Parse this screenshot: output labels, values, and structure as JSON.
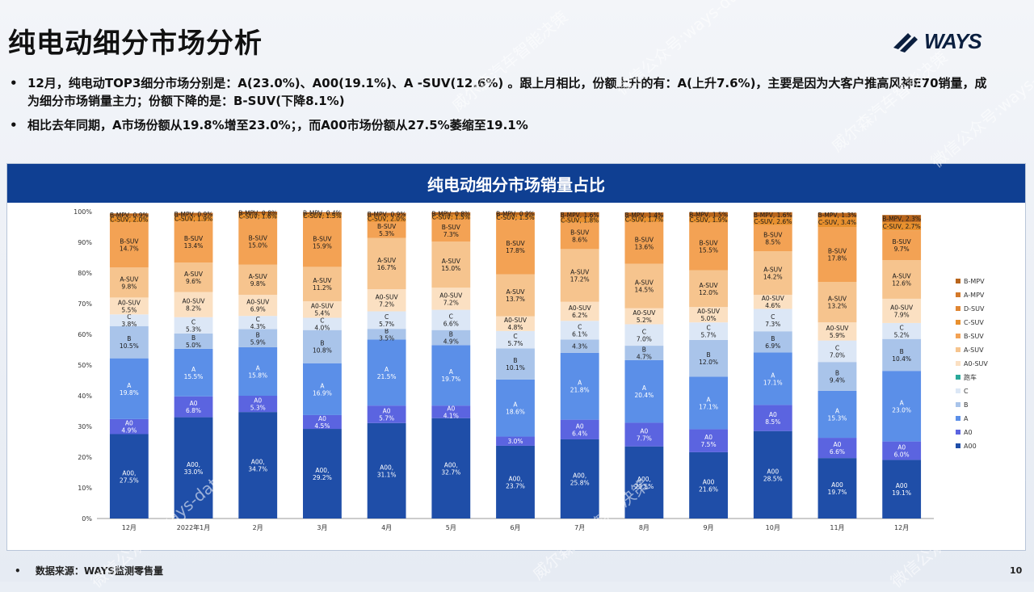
{
  "page": {
    "title": "纯电动细分市场分析",
    "logo_text": "WAYS",
    "bullets": [
      "12月，纯电动TOP3细分市场分别是：A(23.0%)、A00(19.1%)、A -SUV(12.6%) 。跟上月相比，份额上升的有：A(上升7.6%)，主要是因为大客户推高风神E70销量，成为细分市场销量主力；份额下降的是：B-SUV(下降8.1%)",
      "相比去年同期，A市场份额从19.8%增至23.0%；，而A00市场份额从27.5%萎缩至19.1%"
    ],
    "panel_title": "纯电动细分市场销量占比",
    "footer": "数据来源：WAYS监测零售量",
    "page_number": "10",
    "watermark_lines": [
      "威尔森汽车智能决策",
      "微信公众号:ways-data"
    ]
  },
  "chart_data": {
    "type": "bar",
    "stacked": true,
    "categories": [
      "12月",
      "2022年1月",
      "2月",
      "3月",
      "4月",
      "5月",
      "6月",
      "7月",
      "8月",
      "9月",
      "10月",
      "11月",
      "12月"
    ],
    "y_ticks": [
      "0%",
      "10%",
      "20%",
      "30%",
      "40%",
      "50%",
      "60%",
      "70%",
      "80%",
      "90%",
      "100%"
    ],
    "ylim": [
      0,
      100
    ],
    "legend_position": "right",
    "legend": [
      "B-MPV",
      "A-MPV",
      "D-SUV",
      "C-SUV",
      "B-SUV",
      "A-SUV",
      "A0-SUV",
      "跑车",
      "C",
      "B",
      "A",
      "A0",
      "A00"
    ],
    "series": [
      {
        "name": "A00",
        "label": "A00",
        "color": "#1f4ea8",
        "values": [
          27.5,
          33.0,
          34.7,
          29.2,
          31.1,
          32.7,
          23.7,
          25.8,
          23.5,
          21.6,
          28.5,
          19.7,
          19.1
        ],
        "labels": [
          "A00,\n27.5%",
          "A00,\n33.0%",
          "A00,\n34.7%",
          "A00,\n29.2%",
          "A00,\n31.1%",
          "A00,\n32.7%",
          "A00,\n23.7%",
          "A00,\n25.8%",
          "A00,\n23.5%",
          "A00\n21.6%",
          "A00\n28.5%",
          "A00\n19.7%",
          "A00\n19.1%"
        ]
      },
      {
        "name": "A0",
        "label": "A0",
        "color": "#5b64e0",
        "values": [
          4.9,
          6.8,
          5.3,
          4.5,
          5.7,
          4.1,
          3.0,
          6.4,
          7.7,
          7.5,
          8.5,
          6.6,
          6.0
        ],
        "labels": [
          "A0\n4.9%",
          "A0\n6.8%",
          "A0\n5.3%",
          "A0\n4.5%",
          "A0\n5.7%",
          "A0\n4.1%",
          "3.0%",
          "A0\n6.4%",
          "A0\n7.7%",
          "A0\n7.5%",
          "A0\n8.5%",
          "A0\n6.6%",
          "A0\n6.0%"
        ]
      },
      {
        "name": "A",
        "label": "A",
        "color": "#5b8fe8",
        "values": [
          19.8,
          15.5,
          15.8,
          16.9,
          21.5,
          19.7,
          18.6,
          21.8,
          20.4,
          17.1,
          17.1,
          15.3,
          23.0
        ],
        "labels": [
          "A\n19.8%",
          "A\n15.5%",
          "A\n15.8%",
          "A\n16.9%",
          "A\n21.5%",
          "A\n19.7%",
          "A\n18.6%",
          "A\n21.8%",
          "A\n20.4%",
          "A\n17.1%",
          "A\n17.1%",
          "A\n15.3%",
          "A\n23.0%"
        ]
      },
      {
        "name": "B",
        "label": "B",
        "color": "#a9c4ea",
        "values": [
          10.5,
          5.0,
          5.9,
          10.8,
          3.5,
          4.9,
          10.1,
          4.3,
          4.7,
          12.0,
          6.9,
          9.4,
          10.4
        ],
        "labels": [
          "B\n10.5%",
          "B\n5.0%",
          "B\n5.9%",
          "B\n10.8%",
          "B\n3.5%",
          "B\n4.9%",
          "B\n10.1%",
          "4.3%",
          "B\n4.7%",
          "B\n12.0%",
          "B\n6.9%",
          "B\n9.4%",
          "B\n10.4%"
        ]
      },
      {
        "name": "C",
        "label": "C",
        "color": "#dce7f6",
        "values": [
          3.8,
          5.3,
          4.3,
          4.0,
          5.7,
          6.6,
          5.7,
          6.1,
          7.0,
          5.7,
          7.3,
          7.0,
          5.2
        ],
        "labels": [
          "C\n3.8%",
          "C\n5.3%",
          "C\n4.3%",
          "C\n4.0%",
          "C\n5.7%",
          "C\n6.6%",
          "C\n5.7%",
          "C\n6.1%",
          "C\n7.0%",
          "C\n5.7%",
          "C\n7.3%",
          "C\n7.0%",
          "C\n5.2%"
        ]
      },
      {
        "name": "A0-SUV",
        "label": "A0-SUV",
        "color": "#fbe0c2",
        "values": [
          5.5,
          8.2,
          6.9,
          5.4,
          7.2,
          7.2,
          4.8,
          6.2,
          5.2,
          5.0,
          4.6,
          5.9,
          7.9
        ],
        "labels": [
          "A0-SUV\n5.5%",
          "A0-SUV\n8.2%",
          "A0-SUV\n6.9%",
          "A0-SUV\n5.4%",
          "A0-SUV\n7.2%",
          "A0-SUV\n7.2%",
          "A0-SUV\n4.8%",
          "A0-SUV\n6.2%",
          "A0-SUV\n5.2%",
          "A0-SUV\n5.0%",
          "A0-SUV\n4.6%",
          "A0-SUV\n5.9%",
          "A0-SUV\n7.9%"
        ]
      },
      {
        "name": "A-SUV",
        "label": "A-SUV",
        "color": "#f6c48e",
        "values": [
          9.8,
          9.6,
          9.8,
          11.2,
          16.7,
          15.0,
          13.7,
          17.2,
          14.5,
          12.0,
          14.2,
          13.2,
          12.6
        ],
        "labels": [
          "A-SUV\n9.8%",
          "A-SUV\n9.6%",
          "A-SUV\n9.8%",
          "A-SUV\n11.2%",
          "A-SUV\n16.7%",
          "A-SUV\n15.0%",
          "A-SUV\n13.7%",
          "A-SUV\n17.2%",
          "A-SUV\n14.5%",
          "A-SUV\n12.0%",
          "A-SUV\n14.2%",
          "A-SUV\n13.2%",
          "A-SUV\n12.6%"
        ]
      },
      {
        "name": "B-SUV",
        "label": "B-SUV",
        "color": "#f3a254",
        "values": [
          14.7,
          13.4,
          15.0,
          15.9,
          5.3,
          7.3,
          17.8,
          8.6,
          13.6,
          15.5,
          8.5,
          17.8,
          9.7
        ],
        "labels": [
          "B-SUV\n14.7%",
          "B-SUV\n13.4%",
          "B-SUV\n15.0%",
          "B-SUV\n15.9%",
          "B-SUV\n5.3%",
          "B-SUV\n7.3%",
          "B-SUV\n17.8%",
          "B-SUV\n8.6%",
          "B-SUV\n13.6%",
          "B-SUV\n15.5%",
          "B-SUV\n8.5%",
          "B-SUV\n17.8%",
          "B-SUV\n9.7%"
        ]
      },
      {
        "name": "C-SUV",
        "label": "C-SUV",
        "color": "#e8902e",
        "values": [
          2.0,
          1.9,
          1.6,
          1.5,
          2.0,
          1.5,
          1.5,
          1.8,
          1.7,
          1.9,
          2.6,
          3.4,
          2.7
        ],
        "labels": [
          "C-SUV, 2.0%",
          "C-SUV, 1.9%",
          "C-SUV, 1.6%",
          "C-SUV, 1.5%",
          "C-SUV, 2.0%",
          "C-SUV, 1.5%",
          "C-SUV, 1.5%",
          "C-SUV, 1.8%",
          "C-SUV, 1.7%",
          "C-SUV, 1.9%",
          "C-SUV, 2.6%",
          "C-SUV, 3.4%",
          "C-SUV, 2.7%"
        ]
      },
      {
        "name": "B-MPV",
        "label": "B-MPV",
        "color": "#b8651c",
        "values": [
          0.9,
          0.9,
          0.8,
          0.4,
          0.9,
          0.8,
          0.9,
          1.6,
          1.4,
          1.5,
          1.6,
          1.3,
          2.3
        ],
        "labels": [
          "B-MPV, 0.9%",
          "B-MPV, 0.9%",
          "B-MPV, 0.8%",
          "B-MPV, 0.4%",
          "B-MPV, 0.9%",
          "B-MPV, 0.8%",
          "B-MPV, 0.9%",
          "B-MPV, 1.6%",
          "B-MPV, 1.4%",
          "B-MPV, 1.5%",
          "B-MPV, 1.6%",
          "B-MPV, 1.3%",
          "B-MPV, 2.3%"
        ]
      }
    ],
    "legend_colors": {
      "B-MPV": "#b8651c",
      "A-MPV": "#d4792a",
      "D-SUV": "#e08633",
      "C-SUV": "#e8902e",
      "B-SUV": "#f3a254",
      "A-SUV": "#f6c48e",
      "A0-SUV": "#fbe0c2",
      "跑车": "#2aa89a",
      "C": "#dce7f6",
      "B": "#a9c4ea",
      "A": "#5b8fe8",
      "A0": "#5b64e0",
      "A00": "#1f4ea8"
    }
  }
}
